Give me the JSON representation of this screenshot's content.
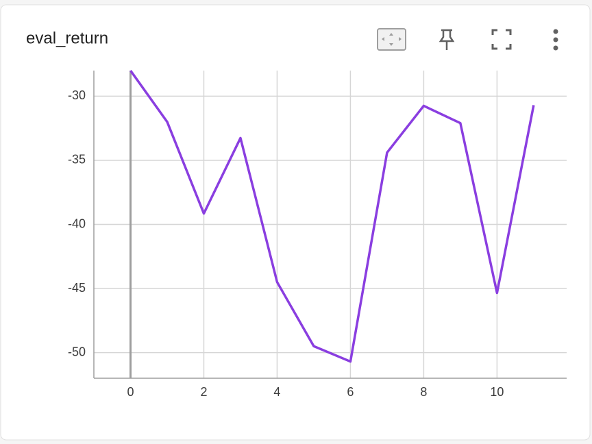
{
  "chart_data": {
    "type": "line",
    "title": "eval_return",
    "x": [
      0,
      1,
      2,
      3,
      4,
      5,
      6,
      7,
      8,
      9,
      10,
      11
    ],
    "series": [
      {
        "name": "eval_return",
        "color": "#8a3ee0",
        "values": [
          -28.0,
          -32.0,
          -39.15,
          -33.26,
          -44.5,
          -49.5,
          -50.7,
          -34.4,
          -30.75,
          -32.1,
          -45.35,
          -30.7
        ]
      }
    ],
    "xlim": [
      -1,
      11.9
    ],
    "xticks": [
      0,
      2,
      4,
      6,
      8,
      10
    ],
    "ylim": [
      -52,
      -28
    ],
    "yticks": [
      -30,
      -35,
      -40,
      -45,
      -50
    ],
    "grid": true
  }
}
